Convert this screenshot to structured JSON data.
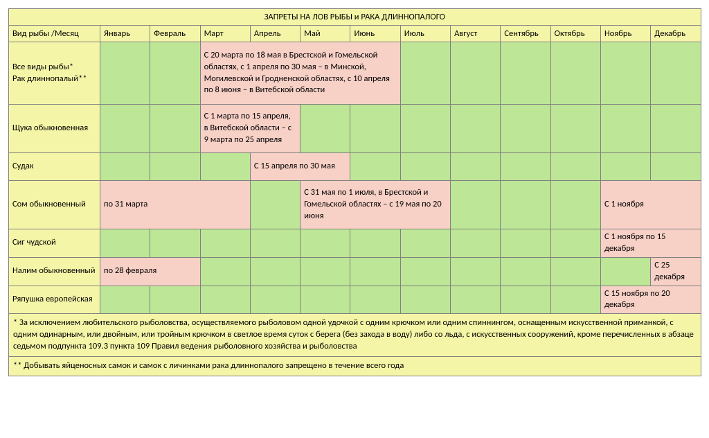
{
  "colors": {
    "yellow": "#f5f5a8",
    "green": "#bde696",
    "pink": "#f7d0c6",
    "border": "#808080",
    "text": "#000000"
  },
  "title": "ЗАПРЕТЫ НА ЛОВ РЫБЫ и РАКА ДЛИННОПАЛОГО",
  "species_header": "Вид рыбы /Месяц",
  "months": [
    "Январь",
    "Февраль",
    "Март",
    "Апрель",
    "Май",
    "Июнь",
    "Июль",
    "Август",
    "Сентябрь",
    "Октябрь",
    "Ноябрь",
    "Декабрь"
  ],
  "rows": {
    "all_fish": {
      "species": "Все виды рыбы*\nРак длиннопалый**",
      "ban_mar_jun": "С 20 марта по 18 мая в Брестской и Гомельской областях, с 1 апреля по 30 мая  –  в Минской, Могилевской и Гродненской областях, с 10 апреля по 8 июня – в Витебской области"
    },
    "pike": {
      "species": "Щука обыкновенная",
      "ban_mar_apr": "С 1 марта по 15 апреля, в Витебской области –  с 9 марта по 25 апреля"
    },
    "zander": {
      "species": "Судак",
      "ban_apr_may": "С 15 апреля по 30 мая"
    },
    "catfish": {
      "species": "Сом обыкновенный",
      "ban_jan_mar": "по 31 марта",
      "ban_may_jul": "С 31 мая по 1 июля, в Брестской и Гомельской областях – с 19 мая по 20 июня",
      "ban_nov_dec": "С 1 ноября"
    },
    "whitefish": {
      "species": "Сиг чудской",
      "ban_nov_dec": "С 1 ноября по 15 декабря"
    },
    "burbot": {
      "species": "Налим обыкновенный",
      "ban_jan_feb": "по 28 февраля",
      "ban_dec": "С 25 декабря"
    },
    "vendace": {
      "species": "Ряпушка европейская",
      "ban_nov_dec": "С 15 ноября по 20 декабря"
    }
  },
  "footnote1": "* За исключением любительского рыболовства, осуществляемого рыболовом одной удочкой с одним крючком или одним спиннингом, оснащенным искусственной приманкой, с одним одинарным, или двойным, или тройным крючком в светлое время суток с берега (без захода в воду) либо со льда, с искусственных сооружений, кроме перечисленных в абзаце седьмом подпункта 109.3 пункта 109 Правил ведения рыболовного хозяйства и рыболовства",
  "footnote2": "** Добывать яйценосных самок и самок с личинками рака длиннопалого запрещено в течение всего года"
}
